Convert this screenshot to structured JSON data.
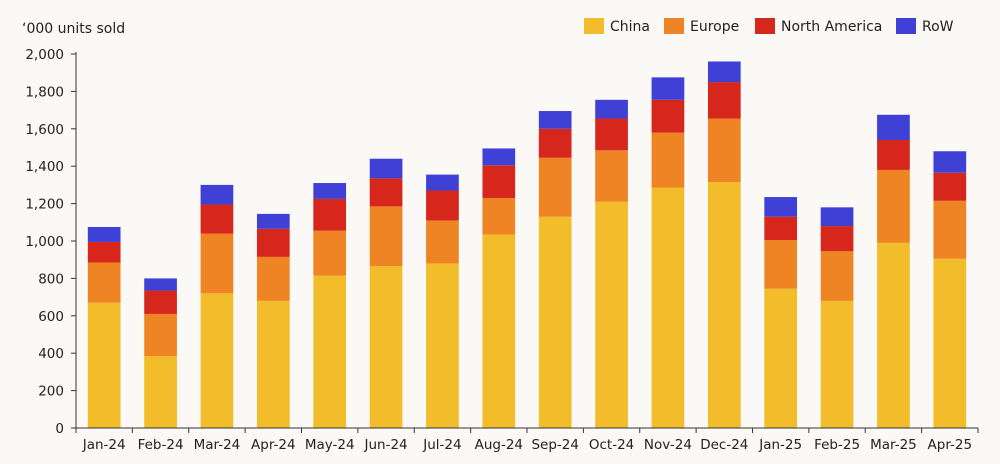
{
  "chart_data": {
    "type": "bar",
    "stacked": true,
    "title": "",
    "xlabel": "",
    "ylabel": "‘000 units sold",
    "ylim": [
      0,
      2000
    ],
    "yticks": [
      0,
      200,
      400,
      600,
      800,
      1000,
      1200,
      1400,
      1600,
      1800,
      2000
    ],
    "ytick_labels": [
      "0",
      "200",
      "400",
      "600",
      "800",
      "1,000",
      "1,200",
      "1,400",
      "1,600",
      "1,800",
      "2,000"
    ],
    "grid": false,
    "legend_position": "top-right",
    "categories": [
      "Jan-24",
      "Feb-24",
      "Mar-24",
      "Apr-24",
      "May-24",
      "Jun-24",
      "Jul-24",
      "Aug-24",
      "Sep-24",
      "Oct-24",
      "Nov-24",
      "Dec-24",
      "Jan-25",
      "Feb-25",
      "Mar-25",
      "Apr-25"
    ],
    "series": [
      {
        "name": "China",
        "color": "#f2bc2a",
        "values": [
          670,
          385,
          720,
          680,
          815,
          865,
          880,
          1035,
          1130,
          1210,
          1285,
          1315,
          745,
          680,
          990,
          905
        ]
      },
      {
        "name": "Europe",
        "color": "#ee8424",
        "values": [
          215,
          225,
          320,
          235,
          240,
          320,
          230,
          195,
          315,
          275,
          295,
          340,
          260,
          265,
          390,
          310
        ]
      },
      {
        "name": "North America",
        "color": "#d7271c",
        "values": [
          110,
          125,
          155,
          150,
          170,
          150,
          160,
          175,
          155,
          170,
          175,
          195,
          125,
          135,
          160,
          150
        ]
      },
      {
        "name": "RoW",
        "color": "#3f41d6",
        "values": [
          80,
          65,
          105,
          80,
          85,
          105,
          85,
          90,
          95,
          100,
          120,
          110,
          105,
          100,
          135,
          115
        ]
      }
    ]
  }
}
